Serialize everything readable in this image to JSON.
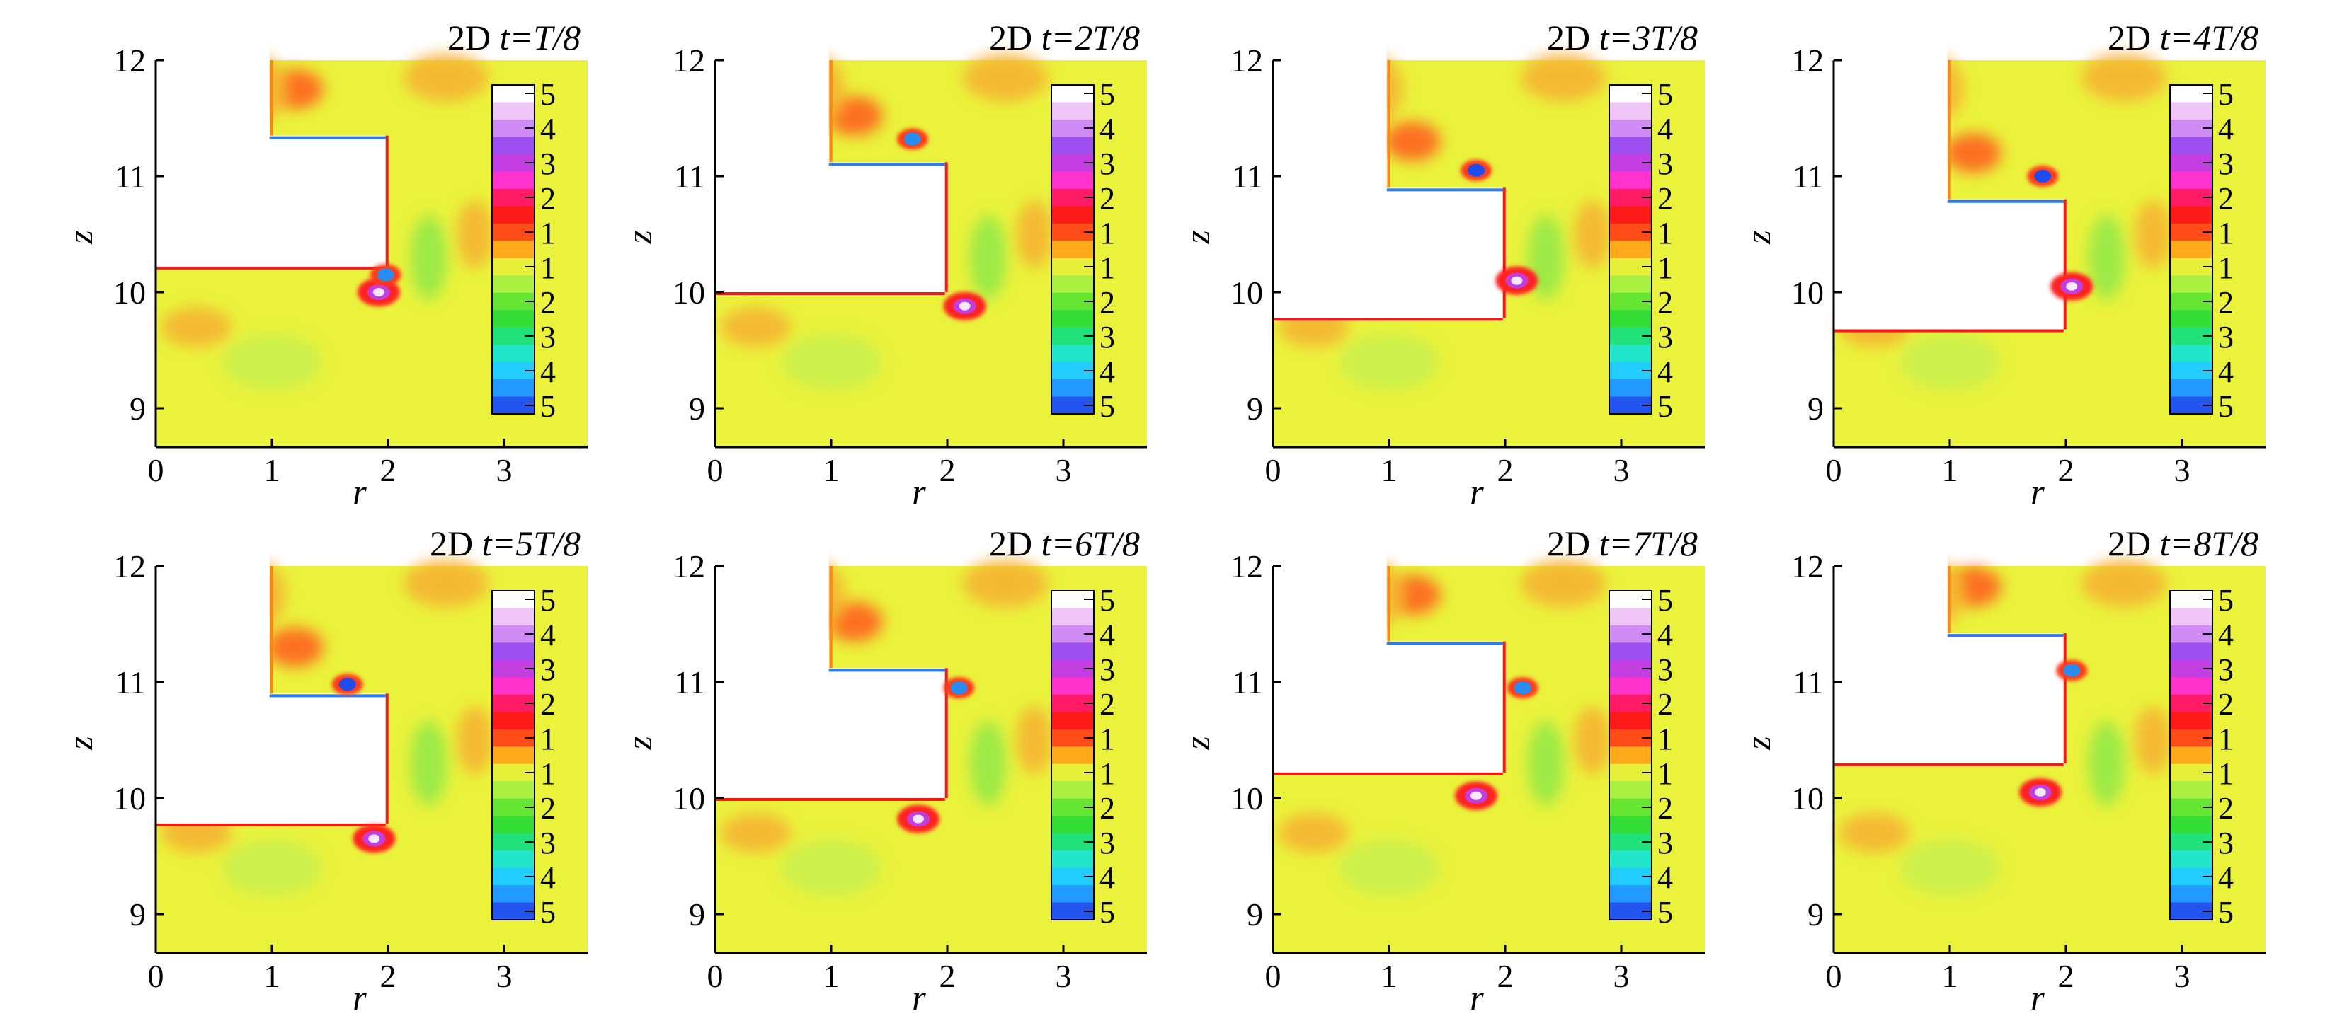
{
  "panels": [
    {
      "label": "2D",
      "time": "T/8"
    },
    {
      "label": "2D",
      "time": "2T/8"
    },
    {
      "label": "2D",
      "time": "3T/8"
    },
    {
      "label": "2D",
      "time": "4T/8"
    },
    {
      "label": "2D",
      "time": "5T/8"
    },
    {
      "label": "2D",
      "time": "6T/8"
    },
    {
      "label": "2D",
      "time": "7T/8"
    },
    {
      "label": "2D",
      "time": "8T/8"
    }
  ],
  "time_symbol": "t=",
  "xlabel": "r",
  "ylabel": "z",
  "x_ticks": [
    "0",
    "1",
    "2",
    "3"
  ],
  "y_ticks": [
    "12",
    "11",
    "10",
    "9"
  ],
  "colorbar": {
    "labels_top": [
      "5",
      "4",
      "3",
      "2",
      "1"
    ],
    "labels_bottom": [
      "1",
      "2",
      "3",
      "4",
      "5"
    ],
    "colors_top": [
      "#ffffff",
      "#f0c6f8",
      "#cf8cf5",
      "#9e4ff0",
      "#c33ee0",
      "#ff33cc",
      "#ff1a66",
      "#ff1a1a",
      "#ff4d1a"
    ],
    "colors_bottom": [
      "#ffaa1a",
      "#e6f03a",
      "#aaf040",
      "#66e633",
      "#33dd33",
      "#22e07a",
      "#22e6cc",
      "#22ccff",
      "#2299ff",
      "#2255ee"
    ]
  },
  "colors": {
    "background_field": "#eaf23c",
    "solid_region": "#ffffff",
    "orange_patch": "#f6b032",
    "red_layer": "#f21a1a",
    "vortex_blue": "#1e4cf0",
    "vortex_light": "#f7e8ff"
  }
}
